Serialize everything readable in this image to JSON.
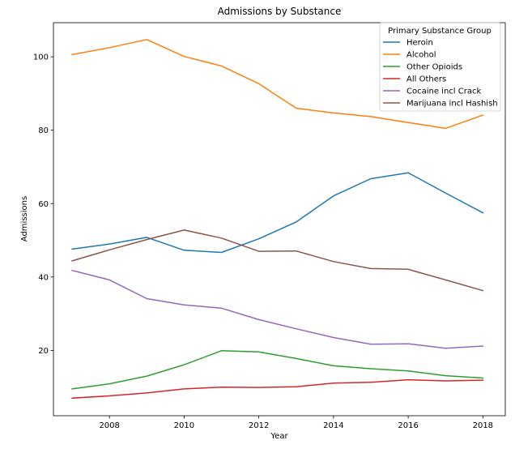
{
  "chart_data": {
    "type": "line",
    "title": "Admissions by Substance",
    "xlabel": "Year",
    "ylabel": "Admissions",
    "xlim": [
      2006.5,
      2018.6
    ],
    "ylim": [
      2.2,
      109.3
    ],
    "xticks": [
      2008,
      2010,
      2012,
      2014,
      2016,
      2018
    ],
    "yticks": [
      20,
      40,
      60,
      80,
      100
    ],
    "grid": false,
    "legend": {
      "title": "Primary Substance Group",
      "placement": "top-right"
    },
    "x": [
      2007,
      2008,
      2009,
      2010,
      2011,
      2012,
      2013,
      2014,
      2015,
      2016,
      2017,
      2018
    ],
    "series": [
      {
        "name": "Heroin",
        "color": "#1f77b4",
        "values": [
          47.6,
          49.0,
          50.8,
          47.3,
          46.7,
          50.4,
          55.0,
          62.1,
          66.8,
          68.4,
          62.9,
          57.5
        ]
      },
      {
        "name": "Alcohol",
        "color": "#ff7f0e",
        "values": [
          100.6,
          102.5,
          104.7,
          100.1,
          97.5,
          92.7,
          86.0,
          84.7,
          83.7,
          82.1,
          80.5,
          84.1
        ]
      },
      {
        "name": "Other Opioids",
        "color": "#2ca02c",
        "values": [
          9.5,
          10.9,
          13.0,
          16.1,
          19.9,
          19.6,
          17.8,
          15.8,
          15.0,
          14.4,
          13.1,
          12.5
        ]
      },
      {
        "name": "All Others",
        "color": "#d62728",
        "values": [
          7.0,
          7.6,
          8.4,
          9.5,
          10.0,
          9.9,
          10.1,
          11.1,
          11.3,
          12.0,
          11.7,
          11.9
        ]
      },
      {
        "name": "Cocaine incl Crack",
        "color": "#9467bd",
        "values": [
          41.8,
          39.2,
          34.1,
          32.4,
          31.5,
          28.4,
          25.9,
          23.5,
          21.7,
          21.8,
          20.6,
          21.2
        ]
      },
      {
        "name": "Marijuana incl Hashish",
        "color": "#8c564b",
        "values": [
          44.4,
          47.4,
          50.2,
          52.8,
          50.6,
          47.0,
          47.1,
          44.2,
          42.3,
          42.1,
          39.2,
          36.3
        ]
      }
    ]
  }
}
